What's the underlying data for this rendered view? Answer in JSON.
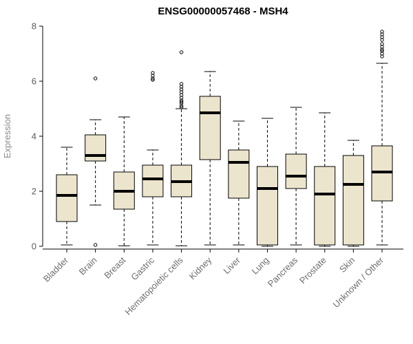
{
  "chart_data": {
    "type": "boxplot",
    "title": "ENSG00000057468 - MSH4",
    "xlabel": "",
    "ylabel": "Expression",
    "ylim": [
      0,
      8
    ],
    "yticks": [
      0,
      2,
      4,
      6,
      8
    ],
    "grid": false,
    "legend": "none",
    "categories": [
      "Bladder",
      "Brain",
      "Breast",
      "Gastric",
      "Hematopoietic cells",
      "Kidney",
      "Liver",
      "Lung",
      "Pancreas",
      "Prostate",
      "Skin",
      "Unknown / Other"
    ],
    "boxes": [
      {
        "category": "Bladder",
        "low": 0.05,
        "q1": 0.9,
        "median": 1.85,
        "q3": 2.6,
        "high": 3.6,
        "outliers": []
      },
      {
        "category": "Brain",
        "low": 1.5,
        "q1": 3.1,
        "median": 3.3,
        "q3": 4.05,
        "high": 4.6,
        "outliers": [
          0.05,
          6.1
        ]
      },
      {
        "category": "Breast",
        "low": 0.02,
        "q1": 1.35,
        "median": 2.0,
        "q3": 2.7,
        "high": 4.7,
        "outliers": []
      },
      {
        "category": "Gastric",
        "low": 0.05,
        "q1": 1.8,
        "median": 2.45,
        "q3": 2.95,
        "high": 3.5,
        "outliers": [
          6.05,
          6.1,
          6.2,
          6.3
        ]
      },
      {
        "category": "Hematopoietic cells",
        "low": 0.02,
        "q1": 1.8,
        "median": 2.35,
        "q3": 2.95,
        "high": 5.0,
        "outliers": [
          5.05,
          5.1,
          5.2,
          5.25,
          5.3,
          5.4,
          5.5,
          5.6,
          5.7,
          5.8,
          5.9,
          7.05
        ]
      },
      {
        "category": "Kidney",
        "low": 0.05,
        "q1": 3.15,
        "median": 4.85,
        "q3": 5.45,
        "high": 6.35,
        "outliers": []
      },
      {
        "category": "Liver",
        "low": 0.05,
        "q1": 1.75,
        "median": 3.05,
        "q3": 3.5,
        "high": 4.55,
        "outliers": []
      },
      {
        "category": "Lung",
        "low": 0.0,
        "q1": 0.05,
        "median": 2.1,
        "q3": 2.9,
        "high": 4.65,
        "outliers": []
      },
      {
        "category": "Pancreas",
        "low": 0.05,
        "q1": 2.1,
        "median": 2.55,
        "q3": 3.35,
        "high": 5.05,
        "outliers": []
      },
      {
        "category": "Prostate",
        "low": 0.0,
        "q1": 0.05,
        "median": 1.9,
        "q3": 2.9,
        "high": 4.85,
        "outliers": []
      },
      {
        "category": "Skin",
        "low": 0.0,
        "q1": 0.05,
        "median": 2.25,
        "q3": 3.3,
        "high": 3.85,
        "outliers": []
      },
      {
        "category": "Unknown / Other",
        "low": 0.05,
        "q1": 1.65,
        "median": 2.7,
        "q3": 3.65,
        "high": 6.65,
        "outliers": [
          6.9,
          7.0,
          7.1,
          7.15,
          7.25,
          7.35,
          7.5,
          7.6,
          7.7,
          7.8
        ]
      }
    ],
    "colors": {
      "box_fill": "#ece5cd",
      "box_stroke": "#000000",
      "axis": "#000000",
      "tick_label": "#5a5a5a",
      "category_label": "#6e6e6e",
      "ylabel_color": "#8a8a8a",
      "background": "#ffffff"
    }
  }
}
